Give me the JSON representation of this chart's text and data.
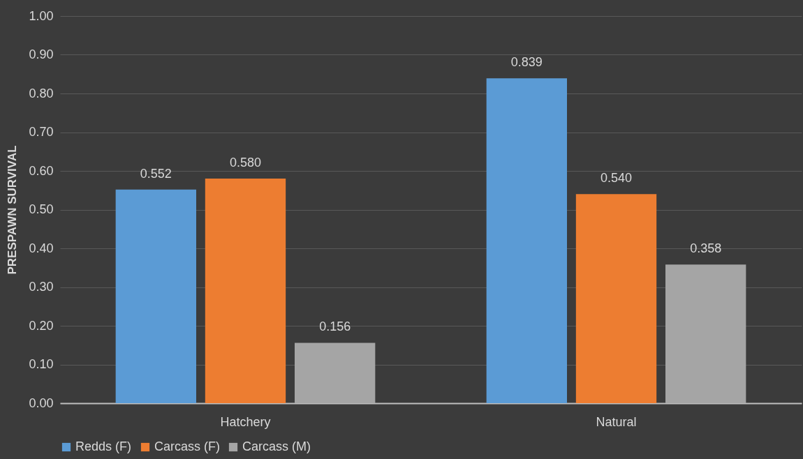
{
  "chart_data": {
    "type": "bar",
    "ylabel": "PRESPAWN SURVIVAL",
    "categories": [
      "Hatchery",
      "Natural"
    ],
    "series": [
      {
        "name": "Redds (F)",
        "color": "#5b9bd5",
        "values": [
          0.552,
          0.839
        ],
        "value_labels": [
          "0.552",
          "0.839"
        ]
      },
      {
        "name": "Carcass (F)",
        "color": "#ed7d31",
        "values": [
          0.58,
          0.54
        ],
        "value_labels": [
          "0.580",
          "0.540"
        ]
      },
      {
        "name": "Carcass (M)",
        "color": "#a5a5a5",
        "values": [
          0.156,
          0.358
        ],
        "value_labels": [
          "0.156",
          "0.358"
        ]
      }
    ],
    "ylim": [
      0,
      1
    ],
    "yticks": [
      {
        "value": 0,
        "label": "0.00"
      },
      {
        "value": 0.1,
        "label": "0.10"
      },
      {
        "value": 0.2,
        "label": "0.20"
      },
      {
        "value": 0.3,
        "label": "0.30"
      },
      {
        "value": 0.4,
        "label": "0.40"
      },
      {
        "value": 0.5,
        "label": "0.50"
      },
      {
        "value": 0.6,
        "label": "0.60"
      },
      {
        "value": 0.7,
        "label": "0.70"
      },
      {
        "value": 0.8,
        "label": "0.80"
      },
      {
        "value": 0.9,
        "label": "0.90"
      },
      {
        "value": 1,
        "label": "1.00"
      }
    ],
    "grid": "y",
    "legend": "bottom"
  }
}
